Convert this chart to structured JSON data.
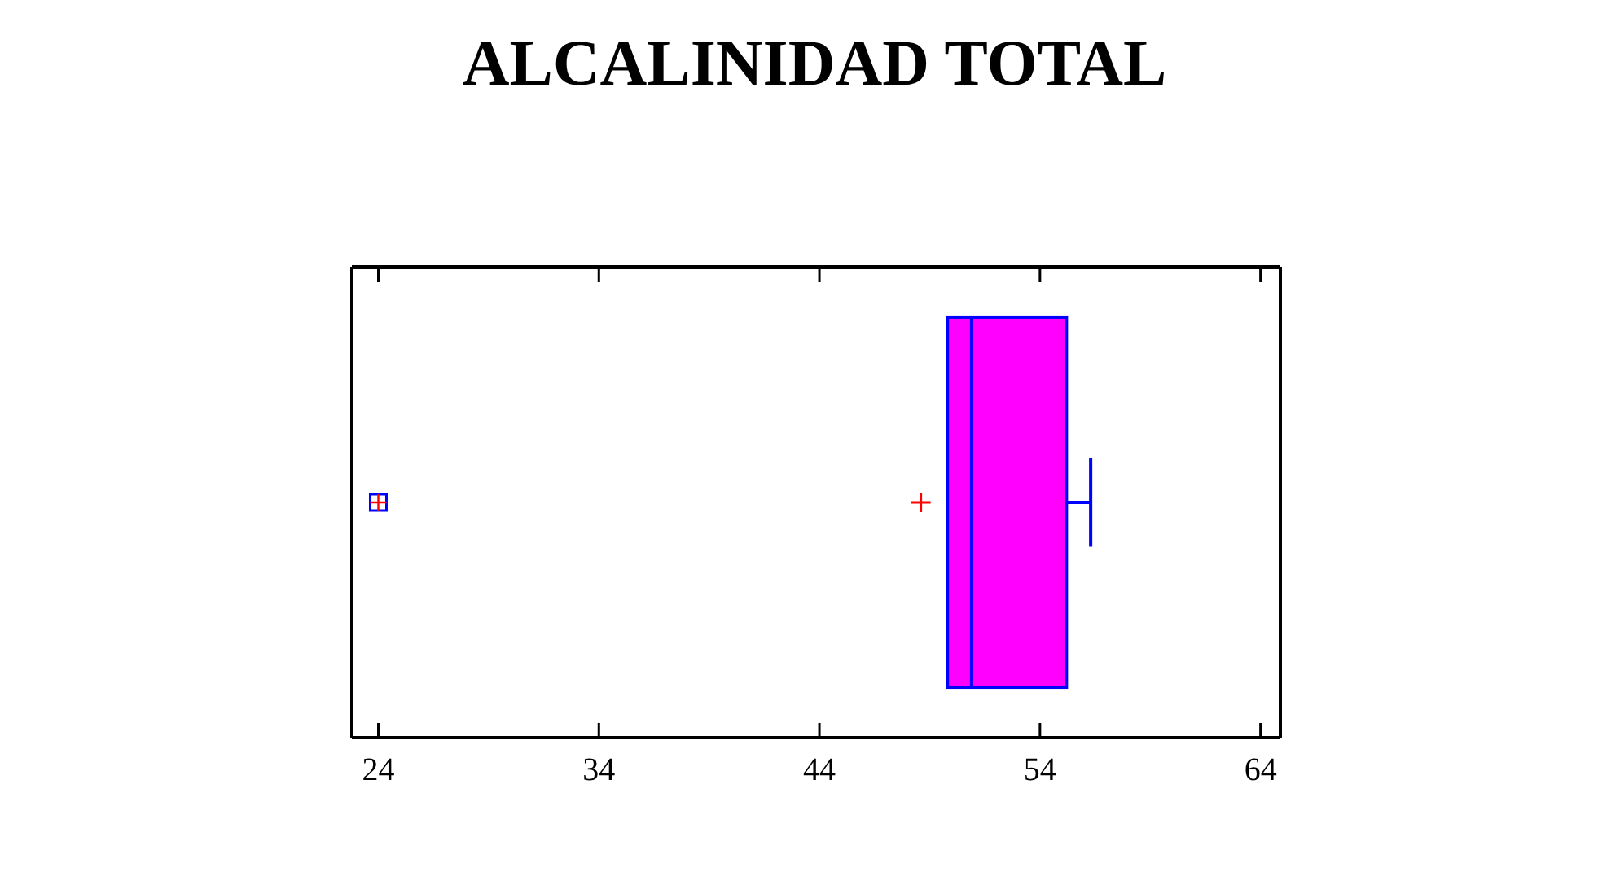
{
  "chart_data": {
    "type": "box",
    "title": "ALCALINIDAD TOTAL",
    "orientation": "horizontal",
    "categories": [
      null
    ],
    "series": [
      {
        "color": "#ff00ff",
        "boxes": [
          {
            "low": 49.8,
            "q1": 49.8,
            "median": 50.9,
            "q3": 55.2,
            "high": 56.3,
            "mean": 48.6,
            "outliers": [
              24
            ]
          }
        ]
      }
    ],
    "xlim": [
      22.8,
      64.9
    ],
    "xticks": [
      24,
      34,
      44,
      54,
      64
    ],
    "tick_labels": "x",
    "grid": false
  }
}
